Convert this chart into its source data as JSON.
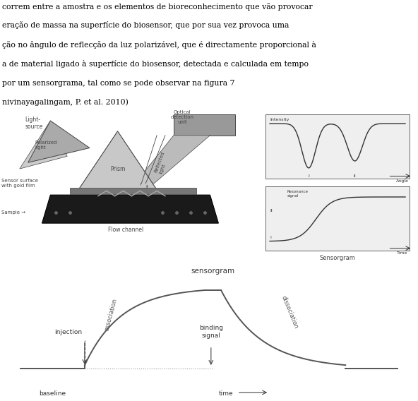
{
  "text_lines": [
    "correm entre a amostra e os elementos de bioreconhecimento que vão provocar",
    "eração de massa na superfície do biosensor, que por sua vez provoca uma",
    "ção no ângulo de reflecção da luz polarizável, que é directamente proporcional à",
    "a de material ligado à superfície do biosensor, detectada e calculada em tempo",
    "por um sensorgrama, tal como se pode observar na figura 7",
    "nivinayagalingam, P. et al. 2010)"
  ],
  "bg_color": "#ffffff",
  "text_color": "#000000",
  "dark": "#444444",
  "mid": "#888888",
  "light": "#bbbbbb",
  "lgray": "#cccccc",
  "darkgray": "#555555",
  "black": "#111111",
  "inset_bg": "#d8d8d8",
  "plot_bg": "#f0f0f0"
}
